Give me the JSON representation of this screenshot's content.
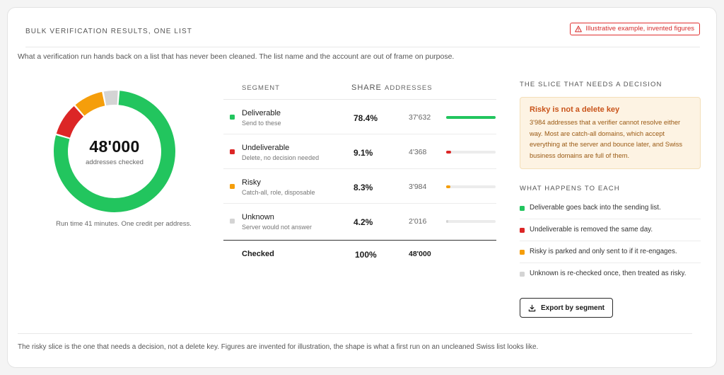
{
  "header": {
    "title": "BULK VERIFICATION RESULTS, ONE LIST",
    "badge": "Illustrative example, invented figures"
  },
  "intro": "What a verification run hands back on a list that has never been cleaned. The list name and the account are out of frame on purpose.",
  "donut": {
    "total_label": "48'000",
    "sub_label": "addresses checked",
    "runtime": "Run time 41 minutes. One credit per address."
  },
  "table": {
    "headers": {
      "segment": "SEGMENT",
      "share": "SHARE",
      "addresses": "ADDRESSES"
    },
    "rows": [
      {
        "name": "Deliverable",
        "desc": "Send to these",
        "share": "78.4%",
        "count": "37'632"
      },
      {
        "name": "Undeliverable",
        "desc": "Delete, no decision needed",
        "share": "9.1%",
        "count": "4'368"
      },
      {
        "name": "Risky",
        "desc": "Catch-all, role, disposable",
        "share": "8.3%",
        "count": "3'984"
      },
      {
        "name": "Unknown",
        "desc": "Server would not answer",
        "share": "4.2%",
        "count": "2'016"
      }
    ],
    "total": {
      "label": "Checked",
      "share": "100%",
      "count": "48'000"
    }
  },
  "right": {
    "heading": "THE SLICE THAT NEEDS A DECISION",
    "callout_title": "Risky is not a delete key",
    "callout_body": "3'984 addresses that a verifier cannot resolve either way. Most are catch-all domains, which accept everything at the server and bounce later, and Swiss business domains are full of them.",
    "heading2": "WHAT HAPPENS TO EACH",
    "items": [
      "Deliverable goes back into the sending list.",
      "Undeliverable is removed the same day.",
      "Risky is parked and only sent to if it re-engages.",
      "Unknown is re-checked once, then treated as risky."
    ],
    "export_label": "Export by segment"
  },
  "footer": "The risky slice is the one that needs a decision, not a delete key. Figures are invented for illustration, the shape is what a first run on an uncleaned Swiss list looks like.",
  "colors": {
    "deliverable": "#22c55e",
    "undeliverable": "#dc2626",
    "risky": "#f59e0b",
    "unknown": "#d4d4d4"
  },
  "chart_data": {
    "type": "pie",
    "categories": [
      "Deliverable",
      "Undeliverable",
      "Risky",
      "Unknown"
    ],
    "values": [
      78.4,
      9.1,
      8.3,
      4.2
    ],
    "counts": [
      37632,
      4368,
      3984,
      2016
    ],
    "total": 48000
  }
}
